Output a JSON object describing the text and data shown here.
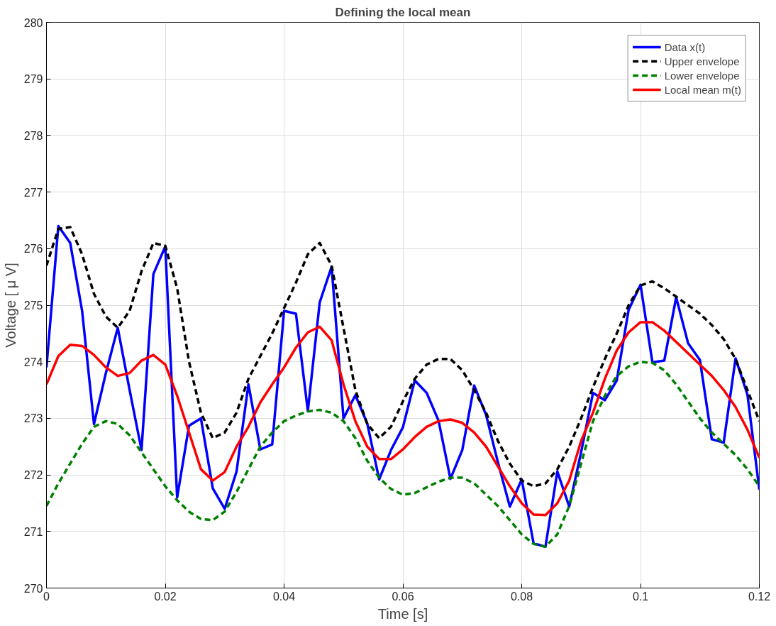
{
  "chart_data": {
    "type": "line",
    "title": "Defining the local mean",
    "xlabel": "Time [s]",
    "ylabel": "Voltage [ μ V]",
    "x": [
      0,
      0.002,
      0.004,
      0.006,
      0.008,
      0.01,
      0.012,
      0.014,
      0.016,
      0.018,
      0.02,
      0.022,
      0.024,
      0.026,
      0.028,
      0.03,
      0.032,
      0.034,
      0.036,
      0.038,
      0.04,
      0.042,
      0.044,
      0.046,
      0.048,
      0.05,
      0.052,
      0.054,
      0.056,
      0.058,
      0.06,
      0.062,
      0.064,
      0.066,
      0.068,
      0.07,
      0.072,
      0.074,
      0.076,
      0.078,
      0.08,
      0.082,
      0.084,
      0.086,
      0.088,
      0.09,
      0.092,
      0.094,
      0.096,
      0.098,
      0.1,
      0.102,
      0.104,
      0.106,
      0.108,
      0.11,
      0.112,
      0.114,
      0.116,
      0.118,
      0.12
    ],
    "series": [
      {
        "name": "Data x(t)",
        "color": "#0000ff",
        "line_style": "solid",
        "values": [
          273.9,
          276.4,
          276.1,
          274.9,
          272.9,
          273.8,
          274.6,
          273.5,
          272.44,
          275.55,
          276.04,
          271.6,
          272.87,
          273.0,
          271.76,
          271.4,
          272.06,
          273.6,
          272.45,
          272.54,
          274.9,
          274.85,
          273.13,
          275.05,
          275.68,
          273.0,
          273.41,
          272.91,
          271.92,
          272.44,
          272.84,
          273.67,
          273.45,
          272.96,
          271.93,
          272.44,
          273.58,
          273.06,
          272.22,
          271.44,
          271.92,
          270.79,
          270.73,
          272.06,
          271.44,
          272.4,
          273.45,
          273.32,
          273.67,
          274.92,
          275.36,
          273.99,
          274.02,
          275.14,
          274.33,
          274.03,
          272.63,
          272.57,
          274.06,
          273.42,
          271.74
        ]
      },
      {
        "name": "Upper envelope",
        "color": "#000000",
        "line_style": "dashed",
        "values": [
          275.7,
          276.35,
          276.38,
          275.9,
          275.2,
          274.8,
          274.6,
          274.9,
          275.6,
          276.1,
          276.05,
          275.3,
          274.0,
          273.1,
          272.65,
          272.75,
          273.1,
          273.7,
          274.1,
          274.5,
          274.95,
          275.4,
          275.9,
          276.1,
          275.7,
          274.6,
          273.5,
          272.9,
          272.65,
          272.85,
          273.3,
          273.7,
          273.95,
          274.05,
          274.05,
          273.85,
          273.5,
          273.1,
          272.6,
          272.2,
          271.9,
          271.8,
          271.85,
          272.1,
          272.5,
          273.0,
          273.55,
          274.05,
          274.5,
          275.0,
          275.35,
          275.42,
          275.3,
          275.15,
          275.0,
          274.85,
          274.65,
          274.4,
          274.05,
          273.5,
          272.95
        ]
      },
      {
        "name": "Lower envelope",
        "color": "#008000",
        "line_style": "dashed",
        "values": [
          271.45,
          271.85,
          272.2,
          272.55,
          272.85,
          272.95,
          272.9,
          272.7,
          272.4,
          272.1,
          271.8,
          271.55,
          271.35,
          271.22,
          271.2,
          271.35,
          271.7,
          272.1,
          272.5,
          272.75,
          272.95,
          273.05,
          273.12,
          273.15,
          273.1,
          272.95,
          272.65,
          272.25,
          271.95,
          271.75,
          271.65,
          271.68,
          271.78,
          271.88,
          271.95,
          271.95,
          271.85,
          271.65,
          271.45,
          271.2,
          270.95,
          270.78,
          270.73,
          270.95,
          271.45,
          272.2,
          272.95,
          273.4,
          273.75,
          273.92,
          274.0,
          273.98,
          273.85,
          273.6,
          273.3,
          273.0,
          272.75,
          272.55,
          272.35,
          272.1,
          271.8
        ]
      },
      {
        "name": "Local mean m(t)",
        "color": "#ff0000",
        "line_style": "solid",
        "values": [
          273.6,
          274.1,
          274.3,
          274.28,
          274.12,
          273.9,
          273.75,
          273.8,
          274.02,
          274.12,
          273.95,
          273.4,
          272.75,
          272.1,
          271.9,
          272.05,
          272.5,
          272.85,
          273.28,
          273.6,
          273.9,
          274.25,
          274.52,
          274.62,
          274.38,
          273.6,
          272.95,
          272.5,
          272.28,
          272.28,
          272.45,
          272.67,
          272.85,
          272.95,
          272.98,
          272.92,
          272.75,
          272.5,
          272.15,
          271.8,
          271.5,
          271.3,
          271.29,
          271.5,
          271.9,
          272.6,
          273.1,
          273.7,
          274.2,
          274.52,
          274.7,
          274.7,
          274.55,
          274.35,
          274.15,
          273.95,
          273.75,
          273.5,
          273.2,
          272.8,
          272.3
        ]
      }
    ],
    "xlim": [
      0,
      0.12
    ],
    "xticks": [
      0,
      0.02,
      0.04,
      0.06,
      0.08,
      0.1,
      0.12
    ],
    "ylim": [
      270,
      280
    ],
    "yticks": [
      270,
      271,
      272,
      273,
      274,
      275,
      276,
      277,
      278,
      279,
      280
    ],
    "grid": true,
    "legend": "top right",
    "marker": "none"
  }
}
